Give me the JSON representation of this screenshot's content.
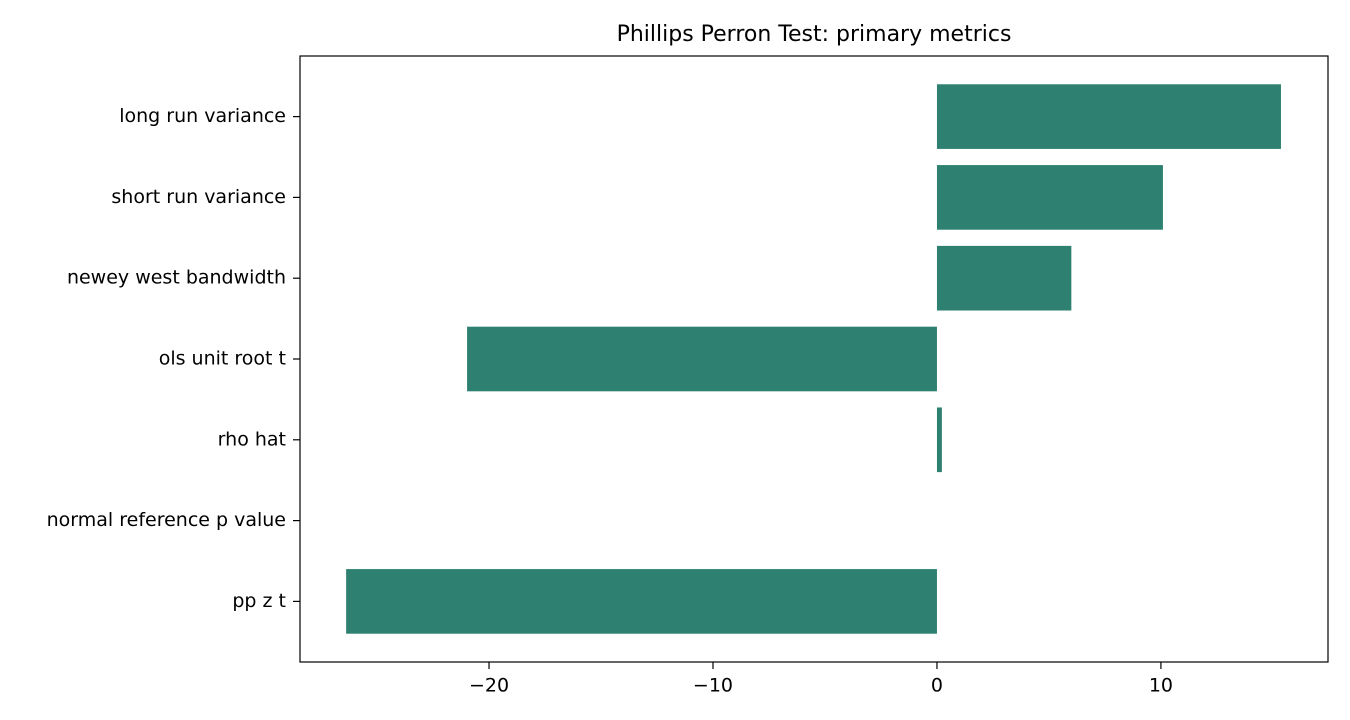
{
  "chart_data": {
    "type": "barh",
    "title": "Phillips Perron Test: primary metrics",
    "categories": [
      "long run variance",
      "short run variance",
      "newey west bandwidth",
      "ols unit root t",
      "rho hat",
      "normal reference p value",
      "pp z t"
    ],
    "values": [
      15.36,
      10.09,
      6.0,
      -20.98,
      0.22,
      0.0,
      -26.38
    ],
    "color": "#2e8070",
    "xlim": [
      -28.44,
      17.46
    ],
    "xticks": [
      {
        "value": -20,
        "label": "−20"
      },
      {
        "value": -10,
        "label": "−10"
      },
      0,
      10
    ],
    "grid": false
  }
}
